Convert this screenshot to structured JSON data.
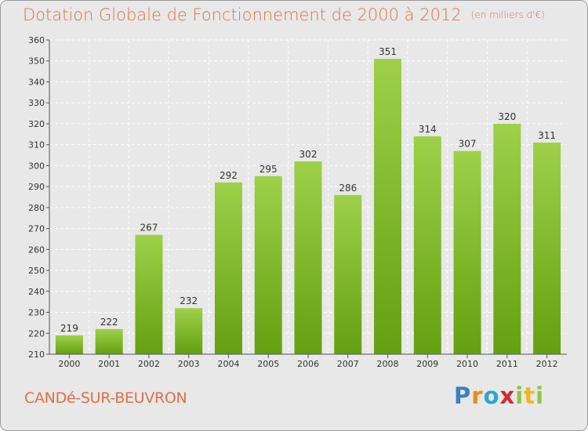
{
  "chart_data": {
    "type": "bar",
    "title": "Dotation Globale de Fonctionnement de 2000 à 2012",
    "subtitle": "(en milliers d'€)",
    "categories": [
      "2000",
      "2001",
      "2002",
      "2003",
      "2004",
      "2005",
      "2006",
      "2007",
      "2008",
      "2009",
      "2010",
      "2011",
      "2012"
    ],
    "values": [
      219,
      222,
      267,
      232,
      292,
      295,
      302,
      286,
      351,
      314,
      307,
      320,
      311
    ],
    "ylim": [
      210,
      360
    ],
    "yticks": [
      210,
      220,
      230,
      240,
      250,
      260,
      270,
      280,
      290,
      300,
      310,
      320,
      330,
      340,
      350,
      360
    ],
    "grid": true,
    "bar_color_light": "#9ed04a",
    "bar_color_dark": "#64a010"
  },
  "commune_name": "CANDé-SUR-BEUVRON",
  "logo": {
    "letters": [
      "P",
      "r",
      "o",
      "x",
      "i",
      "t",
      "i"
    ],
    "colors": [
      "#3a7fc4",
      "#f08a1c",
      "#2aa6d6",
      "#d8262e",
      "#8dc63f",
      "#f3b71c",
      "#8dc63f"
    ]
  }
}
